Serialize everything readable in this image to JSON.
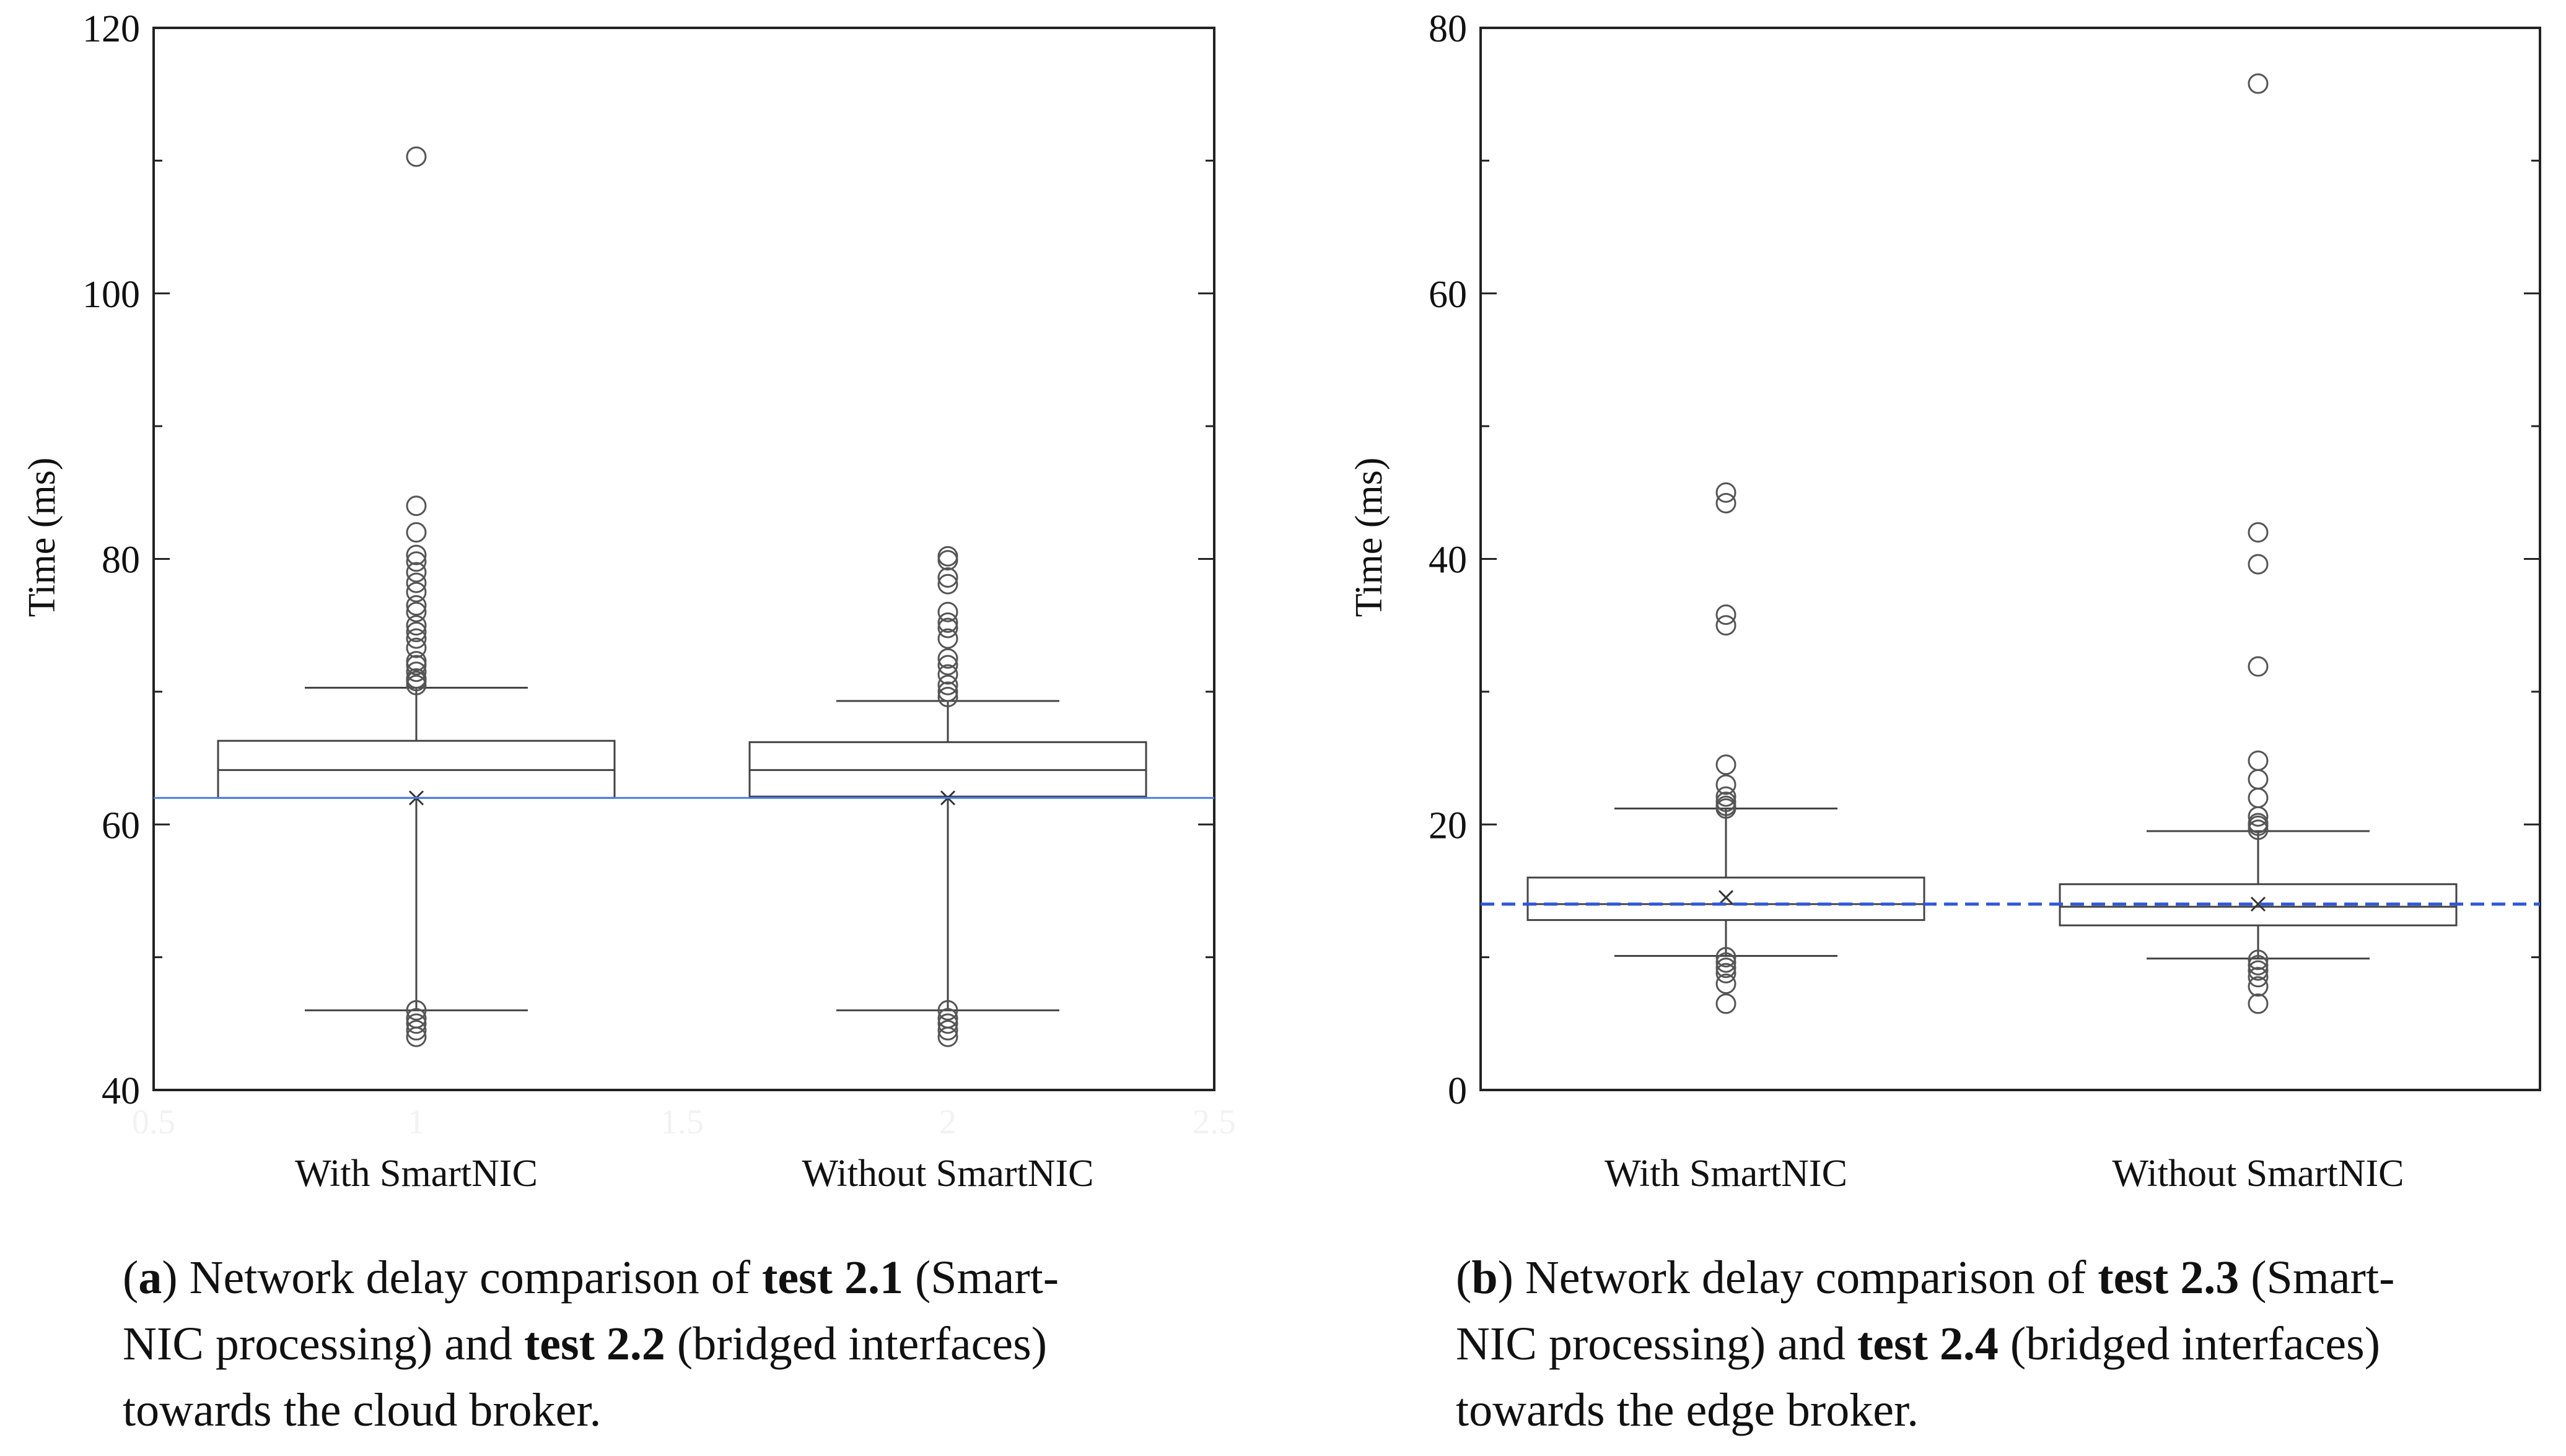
{
  "chart_data": [
    {
      "id": "a",
      "type": "box",
      "title": "",
      "xlabel": "",
      "ylabel": "Time (ms)",
      "ylim": [
        40,
        120
      ],
      "yticks": [
        40,
        60,
        80,
        100,
        120
      ],
      "ytick_labels": [
        "40",
        "60",
        "80",
        "100",
        "120"
      ],
      "xticks_faint": [
        "0.5",
        "1",
        "1.5",
        "2",
        "2.5"
      ],
      "categories": [
        "With SmartNIC",
        "Without SmartNIC"
      ],
      "reference_line": {
        "value": 62.0,
        "style": "solid",
        "color": "#4c7ee8"
      },
      "boxes": [
        {
          "name": "With SmartNIC",
          "q1": 62.0,
          "median": 64.1,
          "q3": 66.3,
          "whisker_low": 46.0,
          "whisker_high": 70.3,
          "mean": 62.0,
          "outliers": [
            110.3,
            84.0,
            82.0,
            80.3,
            79.8,
            79.0,
            78.2,
            77.5,
            76.5,
            76.0,
            75.0,
            74.5,
            74.0,
            73.3,
            72.3,
            72.0,
            71.5,
            71.0,
            70.8,
            70.5,
            46.0,
            45.4,
            45.0,
            44.5,
            44.0
          ]
        },
        {
          "name": "Without SmartNIC",
          "q1": 62.1,
          "median": 64.1,
          "q3": 66.2,
          "whisker_low": 46.0,
          "whisker_high": 69.3,
          "mean": 62.0,
          "outliers": [
            80.2,
            79.9,
            78.6,
            78.1,
            76.0,
            75.2,
            74.8,
            74.0,
            72.5,
            72.0,
            71.3,
            70.5,
            70.0,
            69.6,
            46.0,
            45.4,
            45.0,
            44.5,
            44.0
          ]
        }
      ]
    },
    {
      "id": "b",
      "type": "box",
      "title": "",
      "xlabel": "",
      "ylabel": "Time (ms)",
      "ylim": [
        0,
        80
      ],
      "yticks": [
        0,
        20,
        40,
        60,
        80
      ],
      "ytick_labels": [
        "0",
        "20",
        "40",
        "60",
        "80"
      ],
      "categories": [
        "With SmartNIC",
        "Without SmartNIC"
      ],
      "reference_line": {
        "value": 14.0,
        "style": "dashed",
        "color": "#2f57d6"
      },
      "boxes": [
        {
          "name": "With SmartNIC",
          "q1": 12.8,
          "median": 14.0,
          "q3": 16.0,
          "whisker_low": 10.1,
          "whisker_high": 21.2,
          "mean": 14.5,
          "outliers": [
            45.0,
            44.2,
            35.8,
            35.0,
            24.5,
            23.0,
            22.1,
            21.7,
            21.4,
            21.2,
            10.0,
            9.6,
            9.2,
            8.8,
            8.0,
            6.5
          ]
        },
        {
          "name": "Without SmartNIC",
          "q1": 12.4,
          "median": 13.8,
          "q3": 15.5,
          "whisker_low": 9.9,
          "whisker_high": 19.5,
          "mean": 14.0,
          "outliers": [
            75.8,
            42.0,
            39.6,
            31.9,
            24.8,
            23.4,
            22.0,
            20.6,
            20.1,
            19.9,
            19.6,
            9.8,
            9.4,
            9.0,
            8.5,
            7.8,
            6.5
          ]
        }
      ]
    }
  ],
  "captions": {
    "a": {
      "label": "a",
      "line1_prefix": ") Network delay comparison of ",
      "line1_bold": "test 2.1",
      "line1_suffix": " (Smart-",
      "line2_prefix": "NIC processing) and ",
      "line2_bold": "test 2.2",
      "line2_suffix": " (bridged interfaces)",
      "line3": "towards the cloud broker."
    },
    "b": {
      "label": "b",
      "line1_prefix": ") Network delay comparison of ",
      "line1_bold": "test 2.3",
      "line1_suffix": " (Smart-",
      "line2_prefix": "NIC processing) and ",
      "line2_bold": "test 2.4",
      "line2_suffix": " (bridged interfaces)",
      "line3": "towards the edge broker."
    }
  }
}
